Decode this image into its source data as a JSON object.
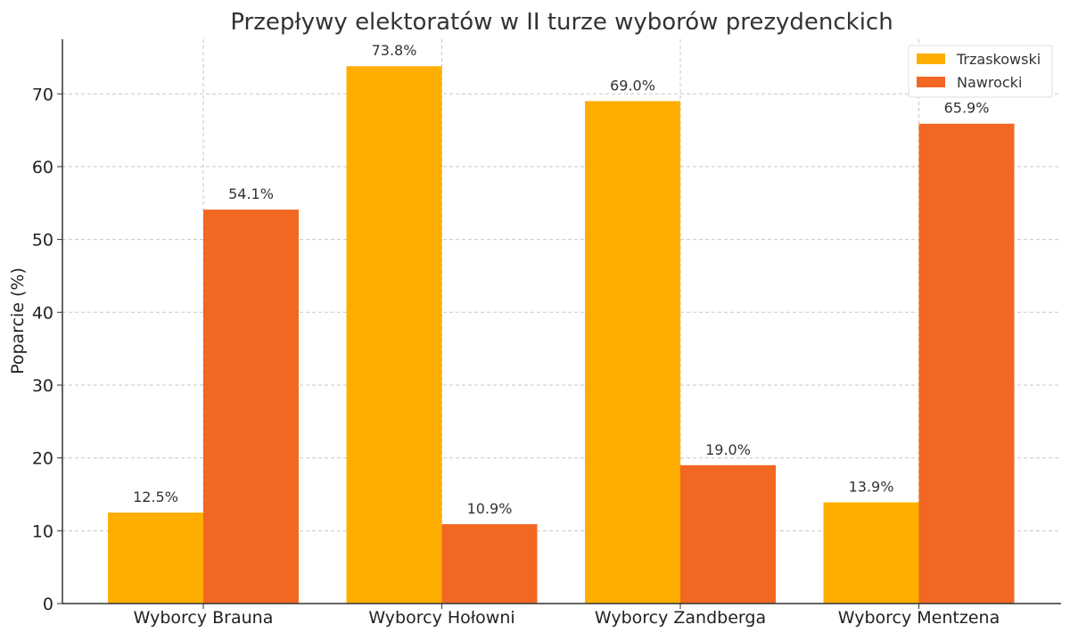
{
  "chart_data": {
    "type": "bar",
    "title": "Przepływy elektoratów w II turze wyborów prezydenckich",
    "xlabel": "",
    "ylabel": "Poparcie (%)",
    "categories": [
      "Wyborcy Brauna",
      "Wyborcy Hołowni",
      "Wyborcy Zandberga",
      "Wyborcy Mentzena"
    ],
    "series": [
      {
        "name": "Trzaskowski",
        "values": [
          12.5,
          73.8,
          69.0,
          13.9
        ],
        "labels": [
          "12.5%",
          "73.8%",
          "69.0%",
          "13.9%"
        ],
        "color": "#FFAE00"
      },
      {
        "name": "Nawrocki",
        "values": [
          54.1,
          10.9,
          19.0,
          65.9
        ],
        "labels": [
          "54.1%",
          "10.9%",
          "19.0%",
          "65.9%"
        ],
        "color": "#F26722"
      }
    ],
    "ylim": [
      0,
      77.5
    ],
    "yticks": [
      0,
      10,
      20,
      30,
      40,
      50,
      60,
      70
    ],
    "grid": true,
    "legend_position": "top-right"
  }
}
